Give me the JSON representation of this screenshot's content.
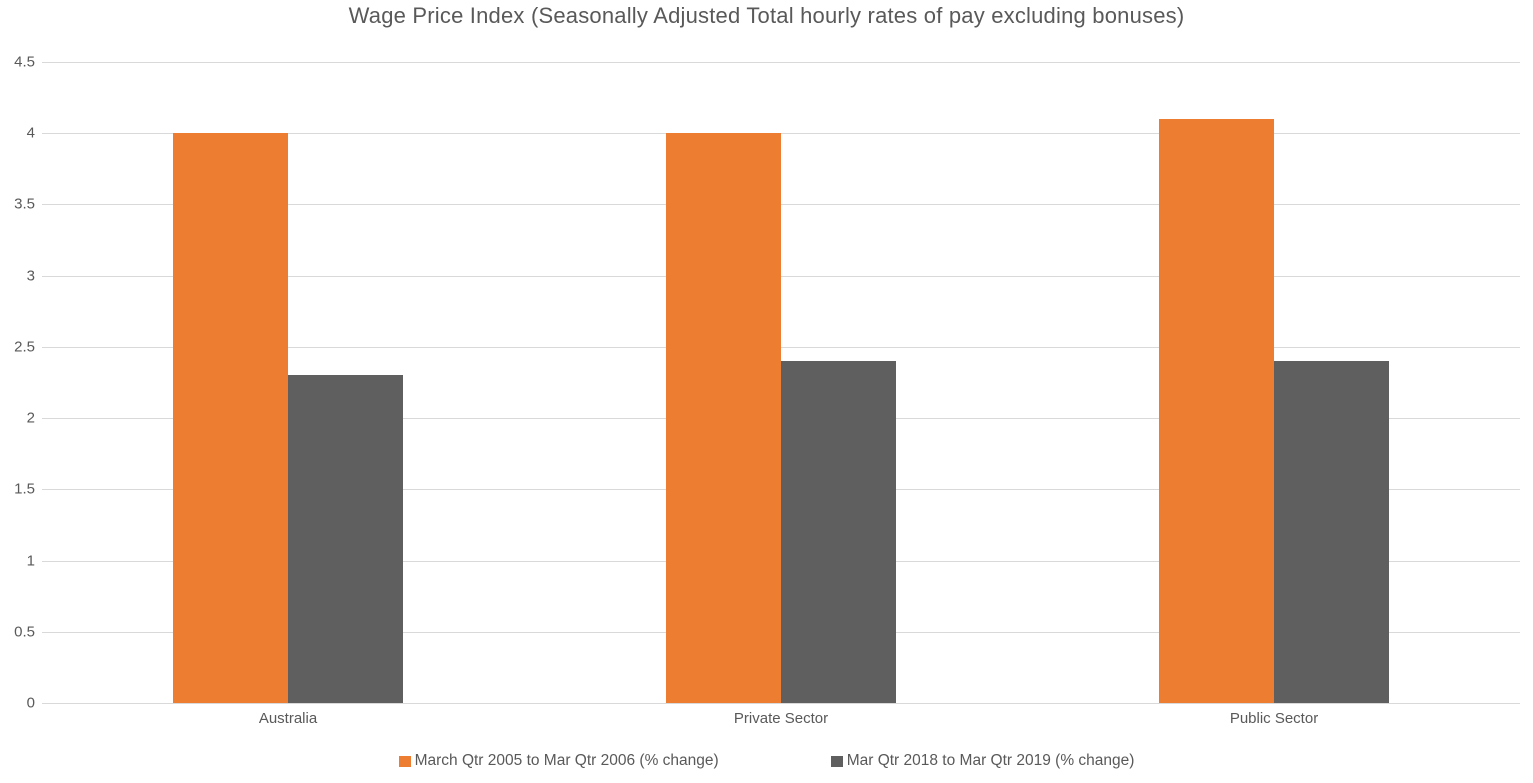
{
  "chart_data": {
    "type": "bar",
    "title": "Wage Price Index (Seasonally Adjusted Total hourly rates of pay excluding bonuses)",
    "categories": [
      "Australia",
      "Private Sector",
      "Public Sector"
    ],
    "series": [
      {
        "name": "March Qtr 2005 to Mar Qtr 2006 (% change)",
        "color": "#ED7D31",
        "values": [
          4.0,
          4.0,
          4.1
        ]
      },
      {
        "name": "Mar Qtr 2018 to Mar Qtr 2019 (% change)",
        "color": "#5F5F5F",
        "values": [
          2.3,
          2.4,
          2.4
        ]
      }
    ],
    "xlabel": "",
    "ylabel": "",
    "ylim": [
      0,
      4.5
    ],
    "ytick_step": 0.5,
    "ytick_labels": [
      "4.5",
      "4",
      "3.5",
      "3",
      "2.5",
      "2",
      "1.5",
      "1",
      "0.5",
      "0"
    ],
    "grid": true,
    "legend_position": "bottom",
    "colors": {
      "gridline": "#D9D9D9",
      "axis_text": "#595959",
      "title_text": "#595959",
      "background": "#FFFFFF"
    }
  }
}
